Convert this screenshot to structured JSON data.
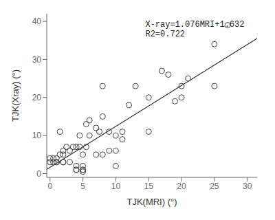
{
  "chart_data": {
    "type": "scatter",
    "xlabel": "TJK(MRI) (°)",
    "ylabel": "TJK(Xray) (°)",
    "xlim": [
      -0.5,
      31.5
    ],
    "ylim": [
      -1,
      42
    ],
    "xticks": [
      0,
      5,
      10,
      15,
      20,
      25,
      30
    ],
    "yticks": [
      0,
      10,
      20,
      30,
      40
    ],
    "grid": false,
    "series": [
      {
        "type": "line",
        "color": "#1a1a1a",
        "line_style": "solid",
        "x": [
          -2,
          32
        ],
        "values": [
          -0.52,
          36.064
        ]
      },
      {
        "type": "scatter",
        "color": "#404040",
        "marker": "open_circle",
        "x": [
          0,
          0,
          0.5,
          0.5,
          1,
          1,
          1,
          1.5,
          1.5,
          2,
          2,
          2,
          2,
          2.5,
          3,
          3,
          3.5,
          4,
          4,
          4,
          4,
          4.5,
          4.5,
          5,
          5,
          5,
          5,
          5,
          5.5,
          5.5,
          6,
          6,
          7,
          7,
          7.5,
          8,
          8,
          8,
          9,
          9,
          10,
          10,
          10,
          11,
          11,
          12,
          13,
          15,
          15,
          17,
          18,
          19,
          20,
          20,
          21,
          25,
          25,
          27
        ],
        "values": [
          3,
          4,
          3,
          4,
          3,
          3,
          4,
          11,
          5,
          5,
          3,
          3,
          6,
          7,
          3,
          6,
          7,
          2,
          1,
          1,
          7,
          7,
          10,
          0.5,
          1,
          1,
          2,
          5,
          7,
          13,
          14,
          10,
          5,
          12,
          11,
          15,
          23,
          5,
          6,
          11,
          6,
          10,
          2,
          11,
          9,
          18,
          23,
          20,
          11,
          27,
          26,
          19,
          20,
          23,
          25,
          34,
          23,
          39
        ]
      }
    ],
    "annotations": [
      {
        "text": "X-ray=1.076MRI+1.632\nR2=0.722",
        "x": 14.5,
        "y": 40.5
      }
    ]
  }
}
